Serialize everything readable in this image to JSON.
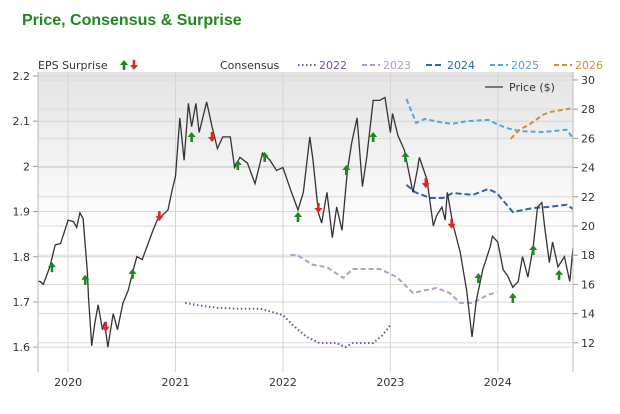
{
  "chart_data": {
    "type": "line",
    "title": "Price, Consensus & Surprise",
    "x_ticks": [
      "2020",
      "2021",
      "2022",
      "2023",
      "2024"
    ],
    "x_range": [
      2019.72,
      2024.7
    ],
    "left_axis": {
      "ticks": [
        1.6,
        1.7,
        1.8,
        1.9,
        2,
        2.1,
        2.2
      ],
      "tick_labels": [
        "1.6",
        "1.7",
        "1.8",
        "1.9",
        "2",
        "2.1",
        "2.2"
      ],
      "range": [
        1.545,
        2.2
      ]
    },
    "right_axis": {
      "ticks": [
        12,
        14,
        16,
        18,
        20,
        22,
        24,
        26,
        28,
        30
      ],
      "tick_labels": [
        "12",
        "14",
        "16",
        "18",
        "20",
        "22",
        "24",
        "26",
        "28",
        "30"
      ],
      "range": [
        10,
        30.27
      ]
    },
    "grid": true,
    "legend": {
      "eps_surprise_label": "EPS Surprise",
      "consensus_label": "Consensus",
      "price_label": "Price ($)",
      "price_legend_placement": "top-right"
    },
    "colors": {
      "price": "#333333",
      "up": "#1a8a1a",
      "down": "#e8231e",
      "2022": "#7a4f9a",
      "2023": "#b69ad0",
      "2024": "#2e64b0",
      "2025": "#4fa8d8",
      "2026": "#c8913c"
    },
    "price": {
      "name": "Price ($)",
      "x": [
        2019.72,
        2019.74,
        2019.77,
        2019.83,
        2019.88,
        2019.93,
        2019.97,
        2020.0,
        2020.05,
        2020.08,
        2020.11,
        2020.14,
        2020.18,
        2020.19,
        2020.22,
        2020.25,
        2020.28,
        2020.32,
        2020.34,
        2020.37,
        2020.42,
        2020.46,
        2020.51,
        2020.56,
        2020.6,
        2020.64,
        2020.69,
        2020.73,
        2020.79,
        2020.83,
        2020.86,
        2020.93,
        2020.97,
        2021.0,
        2021.04,
        2021.08,
        2021.12,
        2021.15,
        2021.19,
        2021.22,
        2021.29,
        2021.34,
        2021.39,
        2021.44,
        2021.51,
        2021.55,
        2021.6,
        2021.67,
        2021.74,
        2021.81,
        2021.88,
        2021.94,
        2022.0,
        2022.07,
        2022.14,
        2022.19,
        2022.25,
        2022.28,
        2022.33,
        2022.36,
        2022.41,
        2022.46,
        2022.5,
        2022.55,
        2022.6,
        2022.64,
        2022.69,
        2022.74,
        2022.78,
        2022.84,
        2022.9,
        2022.95,
        2023.0,
        2023.02,
        2023.07,
        2023.13,
        2023.18,
        2023.21,
        2023.25,
        2023.27,
        2023.34,
        2023.4,
        2023.43,
        2023.48,
        2023.51,
        2023.53,
        2023.58,
        2023.65,
        2023.71,
        2023.76,
        2023.8,
        2023.86,
        2023.93,
        2023.95,
        2024.0,
        2024.05,
        2024.09,
        2024.14,
        2024.19,
        2024.23,
        2024.28,
        2024.33,
        2024.37,
        2024.41,
        2024.44,
        2024.48,
        2024.51,
        2024.56,
        2024.62,
        2024.67,
        2024.7
      ],
      "y": [
        16.2,
        16.2,
        16.0,
        17.2,
        18.7,
        18.8,
        19.7,
        20.4,
        20.3,
        19.9,
        20.9,
        20.5,
        16.8,
        15.1,
        11.8,
        13.4,
        14.6,
        12.9,
        13.4,
        11.7,
        14.0,
        12.9,
        14.7,
        15.6,
        16.8,
        17.9,
        17.7,
        18.5,
        19.7,
        20.4,
        20.6,
        21.1,
        22.5,
        23.4,
        27.4,
        24.5,
        28.4,
        26.8,
        28.4,
        26.4,
        28.5,
        26.8,
        25.3,
        26.1,
        26.1,
        24.0,
        24.7,
        24.3,
        22.9,
        25.0,
        24.5,
        23.8,
        24.0,
        22.5,
        21.1,
        22.3,
        26.1,
        24.5,
        20.9,
        20.2,
        22.3,
        19.2,
        21.3,
        19.7,
        23.8,
        25.7,
        27.4,
        22.7,
        24.7,
        28.6,
        28.6,
        28.8,
        26.4,
        27.7,
        26.2,
        25.2,
        23.4,
        22.3,
        23.8,
        24.7,
        23.2,
        20.0,
        20.7,
        21.3,
        20.4,
        22.3,
        20.2,
        18.2,
        15.6,
        12.4,
        14.9,
        17.0,
        18.6,
        19.3,
        18.9,
        17.0,
        16.6,
        15.8,
        16.2,
        17.9,
        16.5,
        18.6,
        21.3,
        21.6,
        19.7,
        17.5,
        18.9,
        17.2,
        17.9,
        16.2,
        18.5
      ]
    },
    "consensus": [
      {
        "name": "2022",
        "style": "dotted",
        "x": [
          2021.09,
          2021.2,
          2021.39,
          2021.57,
          2021.79,
          2022.0,
          2022.09,
          2022.22,
          2022.34,
          2022.5,
          2022.58,
          2022.65,
          2022.84,
          2022.93,
          2023.0
        ],
        "y": [
          1.698,
          1.693,
          1.687,
          1.685,
          1.685,
          1.671,
          1.649,
          1.623,
          1.609,
          1.609,
          1.6,
          1.609,
          1.609,
          1.627,
          1.649
        ]
      },
      {
        "name": "2023",
        "style": "dashed",
        "x": [
          2022.07,
          2022.13,
          2022.28,
          2022.41,
          2022.56,
          2022.65,
          2022.9,
          2023.06,
          2023.21,
          2023.43,
          2023.55,
          2023.65,
          2023.77,
          2023.9,
          2023.99
        ],
        "y": [
          1.804,
          1.804,
          1.782,
          1.777,
          1.753,
          1.773,
          1.773,
          1.755,
          1.72,
          1.731,
          1.72,
          1.698,
          1.698,
          1.715,
          1.722
        ]
      },
      {
        "name": "2024",
        "style": "dashdot",
        "x": [
          2023.15,
          2023.23,
          2023.37,
          2023.49,
          2023.58,
          2023.77,
          2023.91,
          2023.99,
          2024.14,
          2024.33,
          2024.46,
          2024.64,
          2024.7
        ],
        "y": [
          1.959,
          1.943,
          1.93,
          1.93,
          1.941,
          1.937,
          1.95,
          1.941,
          1.899,
          1.908,
          1.91,
          1.915,
          1.906
        ]
      },
      {
        "name": "2025",
        "style": "dashed",
        "x": [
          2023.15,
          2023.24,
          2023.32,
          2023.46,
          2023.57,
          2023.71,
          2023.91,
          2023.97,
          2024.08,
          2024.2,
          2024.42,
          2024.64,
          2024.7
        ],
        "y": [
          2.149,
          2.096,
          2.105,
          2.098,
          2.094,
          2.1,
          2.103,
          2.096,
          2.085,
          2.078,
          2.076,
          2.081,
          2.063
        ]
      },
      {
        "name": "2026",
        "style": "dashed",
        "x": [
          2024.12,
          2024.2,
          2024.29,
          2024.42,
          2024.48,
          2024.6,
          2024.7
        ],
        "y": [
          2.061,
          2.081,
          2.092,
          2.114,
          2.12,
          2.125,
          2.129
        ]
      }
    ],
    "surprises": [
      {
        "x": 2019.85,
        "y": 1.777,
        "dir": "up"
      },
      {
        "x": 2020.16,
        "y": 1.749,
        "dir": "up"
      },
      {
        "x": 2020.35,
        "y": 1.645,
        "dir": "down"
      },
      {
        "x": 2020.6,
        "y": 1.762,
        "dir": "up"
      },
      {
        "x": 2020.85,
        "y": 1.89,
        "dir": "down"
      },
      {
        "x": 2021.15,
        "y": 2.065,
        "dir": "up"
      },
      {
        "x": 2021.34,
        "y": 2.065,
        "dir": "down"
      },
      {
        "x": 2021.58,
        "y": 2.003,
        "dir": "up"
      },
      {
        "x": 2021.83,
        "y": 2.021,
        "dir": "up"
      },
      {
        "x": 2022.14,
        "y": 1.888,
        "dir": "up"
      },
      {
        "x": 2022.33,
        "y": 1.908,
        "dir": "down"
      },
      {
        "x": 2022.59,
        "y": 1.992,
        "dir": "up"
      },
      {
        "x": 2022.84,
        "y": 2.065,
        "dir": "up"
      },
      {
        "x": 2023.14,
        "y": 2.021,
        "dir": "up"
      },
      {
        "x": 2023.33,
        "y": 1.963,
        "dir": "down"
      },
      {
        "x": 2023.57,
        "y": 1.873,
        "dir": "down"
      },
      {
        "x": 2023.82,
        "y": 1.753,
        "dir": "up"
      },
      {
        "x": 2024.14,
        "y": 1.709,
        "dir": "up"
      },
      {
        "x": 2024.33,
        "y": 1.815,
        "dir": "up"
      },
      {
        "x": 2024.57,
        "y": 1.76,
        "dir": "up"
      }
    ]
  }
}
